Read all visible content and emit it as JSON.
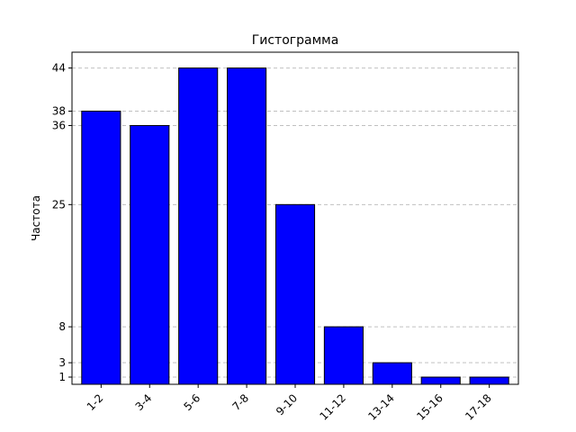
{
  "chart_data": {
    "type": "bar",
    "title": "Гистограмма",
    "xlabel": "",
    "ylabel": "Частота",
    "categories": [
      "1-2",
      "3-4",
      "5-6",
      "7-8",
      "9-10",
      "11-12",
      "13-14",
      "15-16",
      "17-18"
    ],
    "values": [
      38,
      36,
      44,
      44,
      25,
      8,
      3,
      1,
      1
    ],
    "yticks": [
      1,
      3,
      8,
      25,
      36,
      38,
      44
    ],
    "ylim": [
      0,
      46.2
    ],
    "grid": "horizontal-dashed",
    "legend": "none",
    "colors": {
      "bar_fill": "#0000ff",
      "bar_edge": "#000000",
      "grid": "#c0c0c0",
      "axis": "#000000"
    }
  }
}
